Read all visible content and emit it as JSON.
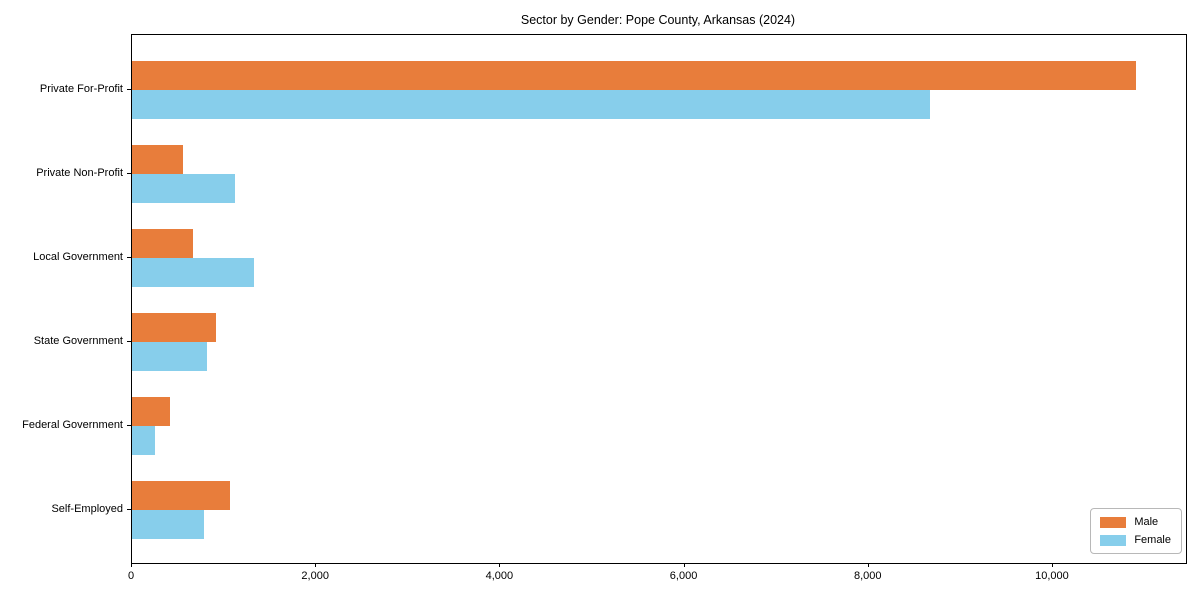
{
  "chart_data": {
    "type": "bar",
    "orientation": "horizontal",
    "title": "Sector by Gender: Pope County, Arkansas (2024)",
    "categories": [
      "Private For-Profit",
      "Private Non-Profit",
      "Local Government",
      "State Government",
      "Federal Government",
      "Self-Employed"
    ],
    "series": [
      {
        "name": "Male",
        "color": "#e87d3b",
        "values": [
          10900,
          555,
          665,
          915,
          415,
          1065
        ]
      },
      {
        "name": "Female",
        "color": "#87ceeb",
        "values": [
          8660,
          1115,
          1320,
          815,
          255,
          780
        ]
      }
    ],
    "xlabel": "",
    "ylabel": "",
    "xlim": [
      0,
      11445
    ],
    "xticks": [
      0,
      2000,
      4000,
      6000,
      8000,
      10000
    ],
    "xtick_labels": [
      "0",
      "2,000",
      "4,000",
      "6,000",
      "8,000",
      "10,000"
    ],
    "grid": false,
    "legend_position": "lower right",
    "axis_color": "#000000"
  }
}
